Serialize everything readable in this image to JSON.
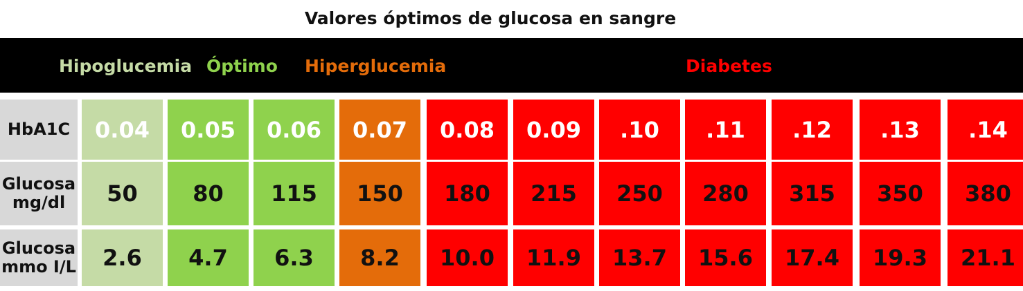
{
  "title": "Valores óptimos de glucosa en sangre",
  "colors": {
    "hipoglucemia": "#c5dba6",
    "optimo": "#8fd24d",
    "hiperglucemia": "#e46c0a",
    "diabetes": "#ff0000",
    "label_bg": "#d8d8d8",
    "header_bg": "#000000"
  },
  "categories": [
    {
      "key": "hipoglucemia",
      "label": "Hipoglucemia",
      "text_color": "#c5dba6"
    },
    {
      "key": "optimo",
      "label": "Óptimo",
      "text_color": "#8fd24d"
    },
    {
      "key": "hiperglucemia",
      "label": "Hiperglucemia",
      "text_color": "#e46c0a"
    },
    {
      "key": "diabetes",
      "label": "Diabetes",
      "text_color": "#ff0000"
    }
  ],
  "chart_data": {
    "type": "table",
    "title": "Valores óptimos de glucosa en sangre",
    "row_labels": [
      [
        "HbA1C"
      ],
      [
        "Glucosa",
        "mg/dl"
      ],
      [
        "Glucosa",
        "mmo I/L"
      ]
    ],
    "column_categories": [
      "hipoglucemia",
      "optimo",
      "optimo",
      "hiperglucemia",
      "diabetes",
      "diabetes",
      "diabetes",
      "diabetes",
      "diabetes",
      "diabetes",
      "diabetes"
    ],
    "rows": [
      [
        "0.04",
        "0.05",
        "0.06",
        "0.07",
        "0.08",
        "0.09",
        ".10",
        ".11",
        ".12",
        ".13",
        ".14"
      ],
      [
        "50",
        "80",
        "115",
        "150",
        "180",
        "215",
        "250",
        "280",
        "315",
        "350",
        "380"
      ],
      [
        "2.6",
        "4.7",
        "6.3",
        "8.2",
        "10.0",
        "11.9",
        "13.7",
        "15.6",
        "17.4",
        "19.3",
        "21.1"
      ]
    ]
  }
}
